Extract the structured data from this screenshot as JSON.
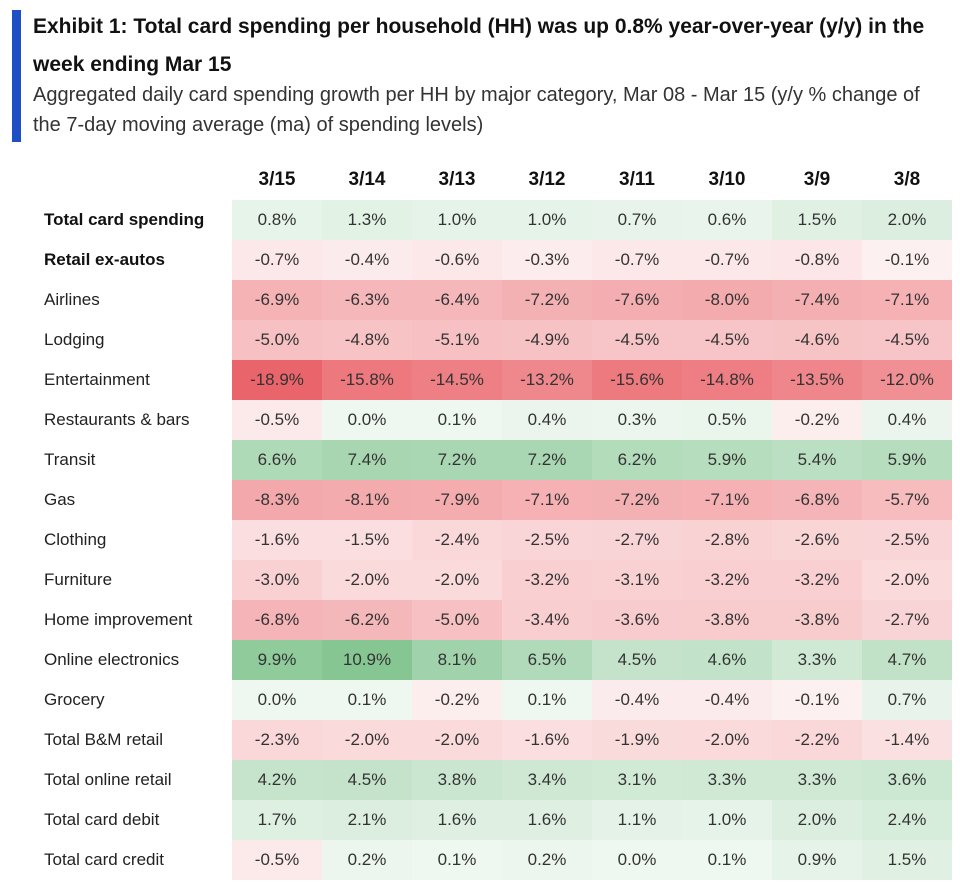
{
  "header": {
    "title": "Exhibit 1: Total card spending per household (HH) was up 0.8% year-over-year (y/y) in the week ending Mar 15",
    "subtitle": "Aggregated daily card spending growth per HH by major category, Mar 08 - Mar 15 (y/y % change of the 7-day moving average (ma) of spending levels)"
  },
  "colors": {
    "accent_bar": "#1f4fc4",
    "positive": "#5cb36e",
    "negative": "#e8545a"
  },
  "chart_data": {
    "type": "heatmap",
    "unit": "%",
    "columns": [
      "3/15",
      "3/14",
      "3/13",
      "3/12",
      "3/11",
      "3/10",
      "3/9",
      "3/8"
    ],
    "rows": [
      {
        "label": "Total card spending",
        "bold": true,
        "values": [
          0.8,
          1.3,
          1.0,
          1.0,
          0.7,
          0.6,
          1.5,
          2.0
        ]
      },
      {
        "label": "Retail ex-autos",
        "bold": true,
        "values": [
          -0.7,
          -0.4,
          -0.6,
          -0.3,
          -0.7,
          -0.7,
          -0.8,
          -0.1
        ]
      },
      {
        "label": "Airlines",
        "values": [
          -6.9,
          -6.3,
          -6.4,
          -7.2,
          -7.6,
          -8.0,
          -7.4,
          -7.1
        ]
      },
      {
        "label": "Lodging",
        "values": [
          -5.0,
          -4.8,
          -5.1,
          -4.9,
          -4.5,
          -4.5,
          -4.6,
          -4.5
        ]
      },
      {
        "label": "Entertainment",
        "values": [
          -18.9,
          -15.8,
          -14.5,
          -13.2,
          -15.6,
          -14.8,
          -13.5,
          -12.0
        ]
      },
      {
        "label": "Restaurants & bars",
        "values": [
          -0.5,
          0.0,
          0.1,
          0.4,
          0.3,
          0.5,
          -0.2,
          0.4
        ]
      },
      {
        "label": "Transit",
        "values": [
          6.6,
          7.4,
          7.2,
          7.2,
          6.2,
          5.9,
          5.4,
          5.9
        ]
      },
      {
        "label": "Gas",
        "values": [
          -8.3,
          -8.1,
          -7.9,
          -7.1,
          -7.2,
          -7.1,
          -6.8,
          -5.7
        ]
      },
      {
        "label": "Clothing",
        "values": [
          -1.6,
          -1.5,
          -2.4,
          -2.5,
          -2.7,
          -2.8,
          -2.6,
          -2.5
        ]
      },
      {
        "label": "Furniture",
        "values": [
          -3.0,
          -2.0,
          -2.0,
          -3.2,
          -3.1,
          -3.2,
          -3.2,
          -2.0
        ]
      },
      {
        "label": "Home improvement",
        "values": [
          -6.8,
          -6.2,
          -5.0,
          -3.4,
          -3.6,
          -3.8,
          -3.8,
          -2.7
        ]
      },
      {
        "label": "Online electronics",
        "values": [
          9.9,
          10.9,
          8.1,
          6.5,
          4.5,
          4.6,
          3.3,
          4.7
        ]
      },
      {
        "label": "Grocery",
        "values": [
          0.0,
          0.1,
          -0.2,
          0.1,
          -0.4,
          -0.4,
          -0.1,
          0.7
        ]
      },
      {
        "label": "Total B&M retail",
        "values": [
          -2.3,
          -2.0,
          -2.0,
          -1.6,
          -1.9,
          -2.0,
          -2.2,
          -1.4
        ]
      },
      {
        "label": "Total online retail",
        "values": [
          4.2,
          4.5,
          3.8,
          3.4,
          3.1,
          3.3,
          3.3,
          3.6
        ]
      },
      {
        "label": "Total card debit",
        "values": [
          1.7,
          2.1,
          1.6,
          1.6,
          1.1,
          1.0,
          2.0,
          2.4
        ]
      },
      {
        "label": "Total card credit",
        "values": [
          -0.5,
          0.2,
          0.1,
          0.2,
          0.0,
          0.1,
          0.9,
          1.5
        ]
      }
    ]
  }
}
